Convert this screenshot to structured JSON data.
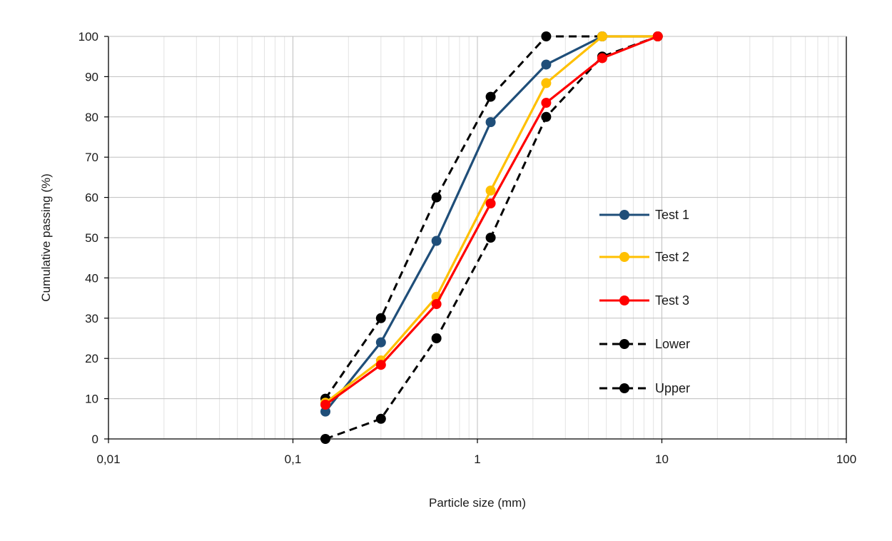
{
  "chart_data": {
    "type": "line",
    "xlabel": "Particle size (mm)",
    "ylabel": "Cumulative passing (%)",
    "x_scale": "log",
    "xlim": [
      0.01,
      100
    ],
    "ylim": [
      0,
      100
    ],
    "x_ticks": [
      0.01,
      0.1,
      1,
      10,
      100
    ],
    "x_tick_labels": [
      "0,01",
      "0,1",
      "1",
      "10",
      "100"
    ],
    "y_ticks": [
      0,
      10,
      20,
      30,
      40,
      50,
      60,
      70,
      80,
      90,
      100
    ],
    "y_tick_labels": [
      "0",
      "10",
      "20",
      "30",
      "40",
      "50",
      "60",
      "70",
      "80",
      "90",
      "100"
    ],
    "grid": true,
    "legend_position": "right",
    "series": [
      {
        "name": "Test 1",
        "color": "#1f4e79",
        "dash": "solid",
        "x": [
          0.15,
          0.3,
          0.6,
          1.18,
          2.36,
          4.75,
          9.5
        ],
        "y": [
          6.8,
          24.0,
          49.2,
          78.7,
          93.0,
          100,
          100
        ]
      },
      {
        "name": "Test 2",
        "color": "#ffc000",
        "dash": "solid",
        "x": [
          0.15,
          0.3,
          0.6,
          1.18,
          2.36,
          4.75,
          9.5
        ],
        "y": [
          9.0,
          19.5,
          35.3,
          61.7,
          88.4,
          100,
          100
        ]
      },
      {
        "name": "Test 3",
        "color": "#ff0000",
        "dash": "solid",
        "x": [
          0.15,
          0.3,
          0.6,
          1.18,
          2.36,
          4.75,
          9.5
        ],
        "y": [
          8.5,
          18.4,
          33.5,
          58.5,
          83.5,
          94.6,
          100
        ]
      },
      {
        "name": "Lower",
        "color": "#000000",
        "dash": "dashed",
        "x": [
          0.15,
          0.3,
          0.6,
          1.18,
          2.36,
          4.75,
          9.5
        ],
        "y": [
          10,
          30,
          60,
          85,
          100,
          100,
          100
        ]
      },
      {
        "name": "Upper",
        "color": "#000000",
        "dash": "dashed",
        "x": [
          0.15,
          0.3,
          0.6,
          1.18,
          2.36,
          4.75,
          9.5
        ],
        "y": [
          0,
          5,
          25,
          50,
          80,
          95,
          100
        ]
      }
    ]
  }
}
